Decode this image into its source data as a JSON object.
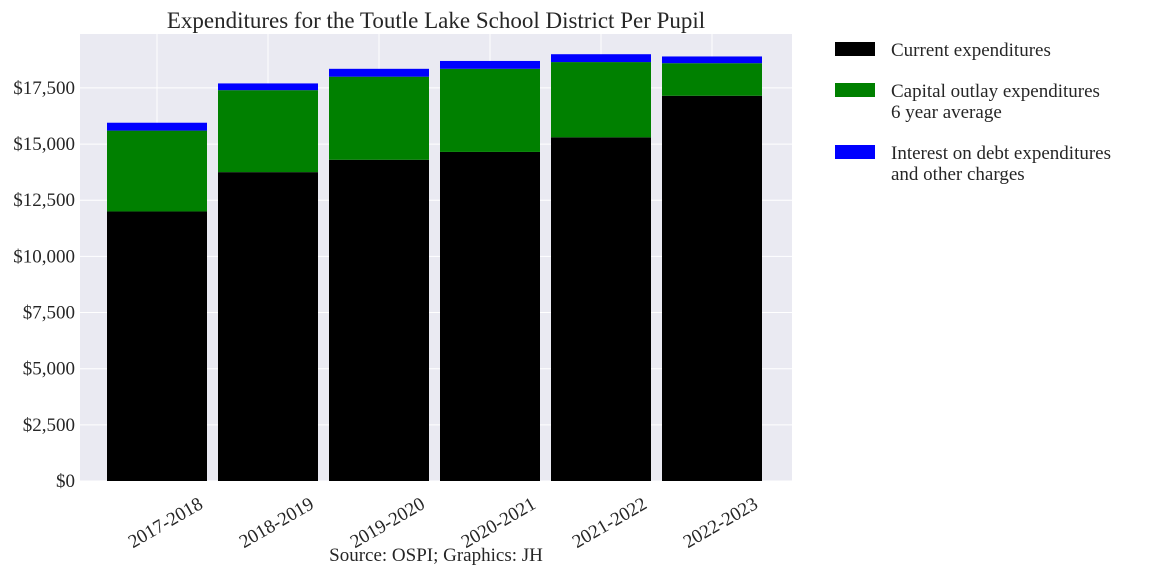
{
  "chart_data": {
    "type": "bar",
    "stacked": true,
    "title": "Expenditures for the Toutle Lake School District Per Pupil",
    "xlabel": "",
    "ylabel": "",
    "caption": "Source: OSPI; Graphics: JH",
    "categories": [
      "2017-2018",
      "2018-2019",
      "2019-2020",
      "2020-2021",
      "2021-2022",
      "2022-2023"
    ],
    "series": [
      {
        "name": "Current expenditures",
        "color": "#000000",
        "values": [
          12000,
          13750,
          14300,
          14650,
          15300,
          17150
        ]
      },
      {
        "name": "Capital outlay expenditures\n6 year average",
        "color": "#008000",
        "values": [
          3600,
          3650,
          3700,
          3700,
          3350,
          1450
        ]
      },
      {
        "name": "Interest on debt expenditures\nand other charges",
        "color": "#0000ff",
        "values": [
          350,
          300,
          350,
          350,
          350,
          300
        ]
      }
    ],
    "ylim": [
      0,
      19900
    ],
    "yticks": [
      0,
      2500,
      5000,
      7500,
      10000,
      12500,
      15000,
      17500
    ],
    "ytick_labels": [
      "$0",
      "$2,500",
      "$5,000",
      "$7,500",
      "$10,000",
      "$12,500",
      "$15,000",
      "$17,500"
    ],
    "grid": true,
    "legend_position": "outside-right-top",
    "plot_background": "#eaeaf2",
    "grid_color": "#ffffff"
  }
}
